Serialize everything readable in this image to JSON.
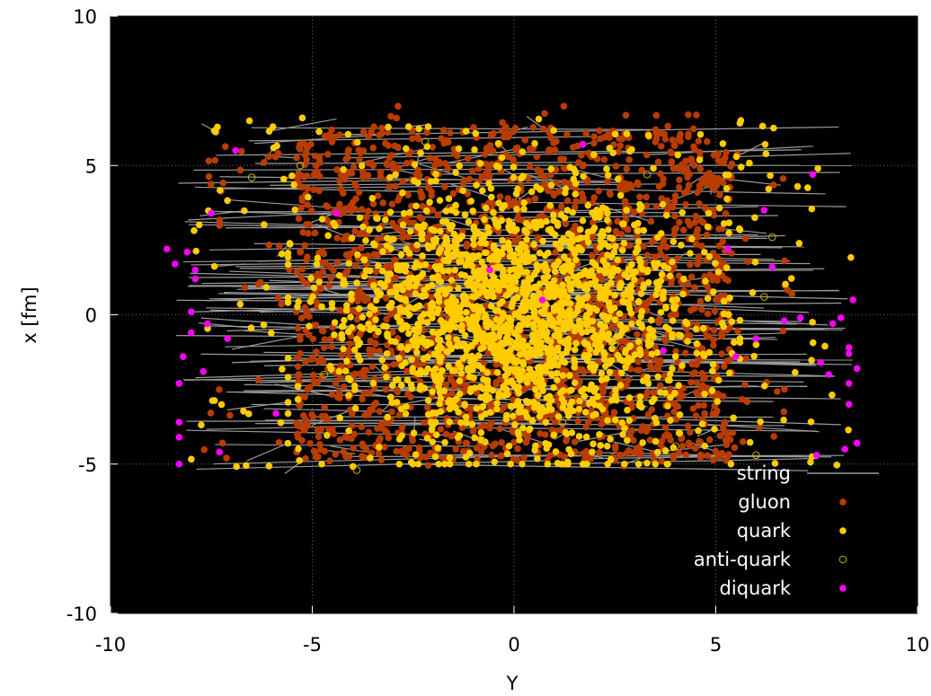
{
  "chart_data": {
    "type": "scatter",
    "title": "",
    "xlabel": "Y",
    "ylabel": "x [fm]",
    "xlim": [
      -10,
      10
    ],
    "ylim": [
      -10,
      10
    ],
    "x_ticks": [
      "-10",
      "-5",
      "0",
      "5",
      "10"
    ],
    "y_ticks": [
      "10",
      "5",
      "0",
      "-5",
      "-10"
    ],
    "x_tick_values": [
      -10,
      -5,
      0,
      5,
      10
    ],
    "y_tick_values": [
      10,
      5,
      0,
      -5,
      -10
    ],
    "grid": true,
    "background": "#000000",
    "legend_position": "bottom-right",
    "legend": [
      {
        "label": "string",
        "marker": "line",
        "color": "#9a9a9a"
      },
      {
        "label": "gluon",
        "marker": "filled-circle",
        "color": "#b83c00"
      },
      {
        "label": "quark",
        "marker": "filled-circle",
        "color": "#ffcc00"
      },
      {
        "label": "anti-quark",
        "marker": "open-circle",
        "color": "#c8b400"
      },
      {
        "label": "diquark",
        "marker": "filled-circle",
        "color": "#ff00ff"
      }
    ],
    "series": [
      {
        "name": "diquark",
        "color": "#ff00ff",
        "x": [
          -8.6,
          -8.4,
          -8.3,
          -8.3,
          -8.3,
          -8.3,
          -8.2,
          -8.1,
          -8.0,
          -8.0,
          -7.9,
          -7.9,
          -7.7,
          -7.6,
          -7.5,
          -7.3,
          -7.1,
          -6.9,
          -5.9,
          -4.4,
          -0.6,
          0.7,
          1.7,
          3.7,
          5.3,
          6.2,
          6.7,
          7.4,
          7.5,
          7.6,
          7.8,
          7.9,
          8.1,
          8.3,
          8.3,
          8.3,
          8.4,
          8.5,
          8.5,
          8.3,
          8.2,
          6.4,
          6.0,
          5.5,
          7.1
        ],
        "y": [
          2.2,
          1.7,
          -5.0,
          -4.1,
          -3.6,
          -2.3,
          -1.4,
          2.1,
          0.1,
          -0.6,
          1.2,
          1.5,
          -1.9,
          -0.3,
          3.4,
          -4.6,
          -0.8,
          5.5,
          -3.3,
          3.4,
          1.5,
          0.5,
          5.7,
          -1.2,
          2.2,
          3.5,
          -0.2,
          4.7,
          -4.7,
          -1.6,
          -2.0,
          -0.3,
          -0.1,
          -1.1,
          -2.3,
          -3.0,
          0.5,
          -4.3,
          -1.8,
          -1.3,
          -4.5,
          1.6,
          -0.8,
          -1.4,
          -0.1
        ]
      },
      {
        "name": "anti-quark",
        "color": "#c8b400",
        "x": [
          -3.9,
          -6.5,
          -5.3,
          6.4,
          6.2,
          -2.2,
          -0.8,
          1.2,
          4.0,
          6.0,
          -4.7,
          3.3,
          -1.5,
          2.5
        ],
        "y": [
          -5.2,
          4.6,
          5.0,
          2.6,
          0.6,
          5.8,
          -4.2,
          -3.6,
          -4.4,
          -4.7,
          -2.0,
          4.7,
          1.0,
          -1.0
        ]
      }
    ],
    "dense_region": {
      "gluon": {
        "x_range": [
          -8.0,
          6.9
        ],
        "y_range": [
          -5.1,
          7.0
        ],
        "approx_count": 2000
      },
      "quark": {
        "x_range": [
          -8.0,
          8.4
        ],
        "y_range": [
          -5.1,
          6.6
        ],
        "approx_count": 1900
      },
      "string_segments": {
        "approx_count": 320
      }
    }
  }
}
